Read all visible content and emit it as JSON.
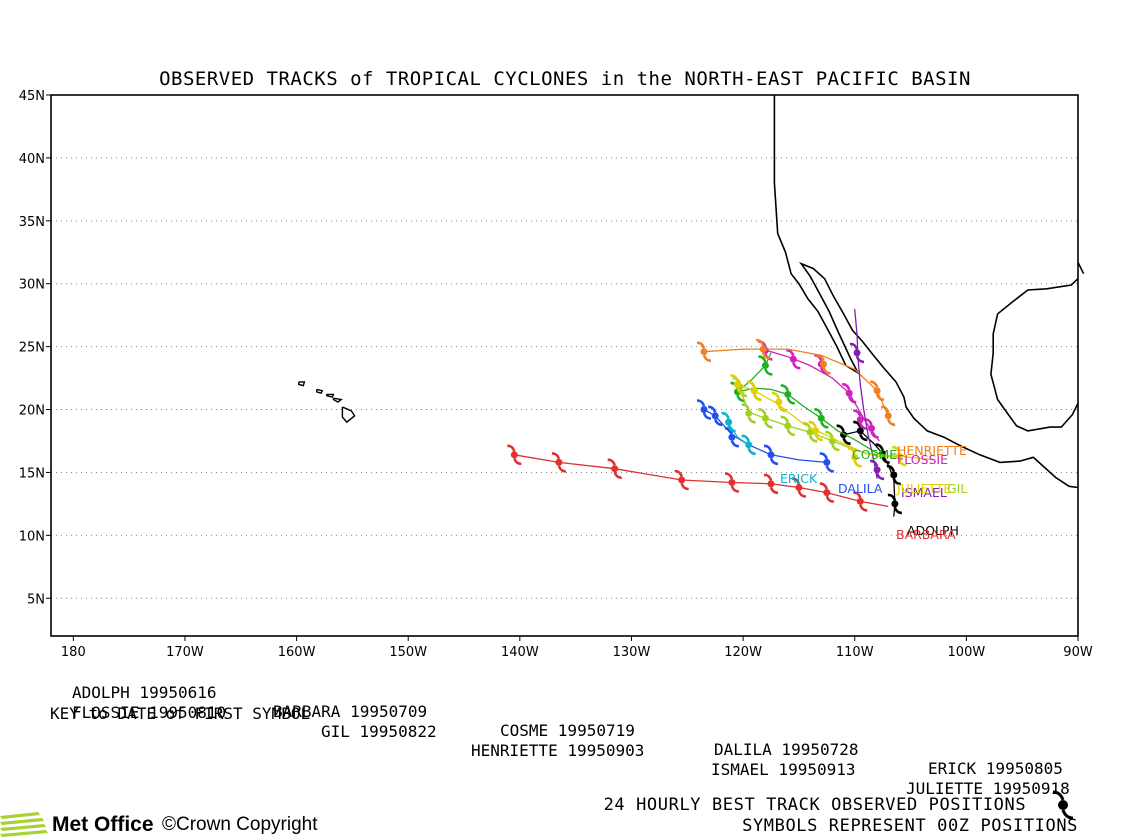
{
  "title": "OBSERVED TRACKS of TROPICAL CYCLONES in the NORTH-EAST PACIFIC BASIN",
  "lat_labels": [
    "45N",
    "40N",
    "35N",
    "30N",
    "25N",
    "20N",
    "15N",
    "10N",
    "5N"
  ],
  "lon_labels": [
    "180",
    "170W",
    "160W",
    "150W",
    "140W",
    "130W",
    "120W",
    "110W",
    "100W",
    "90W"
  ],
  "key_rows": [
    [
      "ADOLPH 19950616",
      "BARBARA 19950709",
      "COSME 19950719",
      "DALILA 19950728",
      "ERICK 19950805"
    ],
    [
      "FLOSSIE 19950810",
      "GIL 19950822",
      "HENRIETTE 19950903",
      "ISMAEL 19950913",
      "JULIETTE 19950918"
    ]
  ],
  "key_note": "KEY to DATE of FIRST SYMBOL",
  "footer": {
    "line1": "24 HOURLY BEST TRACK OBSERVED POSITIONS",
    "line2": "SYMBOLS REPRESENT 00Z POSITIONS"
  },
  "logo_text": "Met Office",
  "copyright": "©Crown Copyright",
  "storms": [
    {
      "name": "ADOLPH",
      "color": "#000000",
      "label": "ADOLPH",
      "track": [
        [
          -111.0,
          18.0
        ],
        [
          -109.5,
          18.3
        ],
        [
          -108.3,
          17.3
        ],
        [
          -107.5,
          16.5
        ],
        [
          -107.0,
          15.6
        ],
        [
          -106.5,
          14.5
        ],
        [
          -106.4,
          12.5
        ],
        [
          -106.5,
          11.5
        ]
      ],
      "symbols": [
        [
          -111.0,
          18.0
        ],
        [
          -109.5,
          18.3
        ],
        [
          -107.5,
          16.5
        ],
        [
          -106.5,
          14.8
        ],
        [
          -106.4,
          12.5
        ]
      ]
    },
    {
      "name": "BARBARA",
      "color": "#e03030",
      "label": "BARBARA",
      "track": [
        [
          -107.0,
          12.3
        ],
        [
          -109.5,
          12.7
        ],
        [
          -112.5,
          13.4
        ],
        [
          -115.0,
          13.8
        ],
        [
          -117.5,
          14.1
        ],
        [
          -121.0,
          14.2
        ],
        [
          -125.5,
          14.4
        ],
        [
          -131.5,
          15.3
        ],
        [
          -136.5,
          15.8
        ],
        [
          -140.5,
          16.4
        ]
      ],
      "symbols": [
        [
          -109.5,
          12.7
        ],
        [
          -112.5,
          13.4
        ],
        [
          -115.0,
          13.8
        ],
        [
          -117.5,
          14.1
        ],
        [
          -121.0,
          14.2
        ],
        [
          -125.5,
          14.4
        ],
        [
          -131.5,
          15.3
        ],
        [
          -136.5,
          15.8
        ],
        [
          -140.5,
          16.4
        ]
      ]
    },
    {
      "name": "COSME",
      "color": "#20b020",
      "label": "COSME",
      "track": [
        [
          -107.5,
          16.3
        ],
        [
          -108.5,
          16.8
        ],
        [
          -110.0,
          17.6
        ],
        [
          -111.5,
          18.3
        ],
        [
          -113.0,
          19.3
        ],
        [
          -114.5,
          20.2
        ],
        [
          -116.0,
          21.2
        ],
        [
          -117.5,
          21.6
        ],
        [
          -119.0,
          21.7
        ],
        [
          -120.5,
          21.4
        ],
        [
          -119.2,
          22.4
        ],
        [
          -118.0,
          23.5
        ],
        [
          -117.5,
          24.5
        ]
      ],
      "symbols": [
        [
          -113.0,
          19.3
        ],
        [
          -116.0,
          21.2
        ],
        [
          -119.0,
          21.5
        ],
        [
          -120.5,
          21.4
        ],
        [
          -118.0,
          23.5
        ]
      ]
    },
    {
      "name": "DALILA",
      "color": "#2050f0",
      "label": "DALILA",
      "track": [
        [
          -112.5,
          15.8
        ],
        [
          -115.0,
          16.0
        ],
        [
          -117.5,
          16.4
        ],
        [
          -119.5,
          17.2
        ],
        [
          -121.0,
          18.0
        ],
        [
          -122.5,
          19.5
        ],
        [
          -123.5,
          20.0
        ]
      ],
      "symbols": [
        [
          -112.5,
          15.8
        ],
        [
          -117.5,
          16.4
        ],
        [
          -121.0,
          17.8
        ],
        [
          -122.5,
          19.5
        ],
        [
          -123.5,
          20.0
        ]
      ]
    },
    {
      "name": "ERICK",
      "color": "#10b0d0",
      "label": "ERICK",
      "track": [
        [
          -119.5,
          17.2
        ],
        [
          -120.5,
          17.8
        ],
        [
          -121.0,
          18.5
        ],
        [
          -121.5,
          19.0
        ]
      ],
      "symbols": [
        [
          -119.5,
          17.2
        ],
        [
          -121.3,
          19.0
        ]
      ]
    },
    {
      "name": "FLOSSIE",
      "color": "#d020c0",
      "label": "FLOSSIE",
      "track": [
        [
          -107.8,
          17.5
        ],
        [
          -109.0,
          19.0
        ],
        [
          -110.5,
          21.3
        ],
        [
          -112.0,
          22.5
        ],
        [
          -114.0,
          23.5
        ],
        [
          -116.0,
          24.2
        ],
        [
          -117.5,
          24.6
        ],
        [
          -118.0,
          24.7
        ]
      ],
      "symbols": [
        [
          -108.5,
          18.5
        ],
        [
          -109.5,
          19.2
        ],
        [
          -110.5,
          21.3
        ],
        [
          -113.0,
          23.6
        ],
        [
          -115.5,
          24.0
        ],
        [
          -118.0,
          24.7
        ]
      ]
    },
    {
      "name": "GIL",
      "color": "#a0d020",
      "label": "GIL",
      "track": [
        [
          -106.0,
          16.2
        ],
        [
          -108.0,
          16.3
        ],
        [
          -110.0,
          16.8
        ],
        [
          -112.0,
          17.5
        ],
        [
          -114.0,
          18.2
        ],
        [
          -116.0,
          18.7
        ],
        [
          -118.0,
          19.3
        ],
        [
          -119.5,
          19.8
        ],
        [
          -120.0,
          21.0
        ],
        [
          -120.5,
          22.0
        ]
      ],
      "symbols": [
        [
          -112.0,
          17.5
        ],
        [
          -114.0,
          18.2
        ],
        [
          -116.0,
          18.7
        ],
        [
          -118.0,
          19.3
        ],
        [
          -119.5,
          19.7
        ],
        [
          -120.3,
          21.8
        ]
      ]
    },
    {
      "name": "HENRIETTE",
      "color": "#f08020",
      "label": "HENRIETTE",
      "track": [
        [
          -107.0,
          19.5
        ],
        [
          -108.0,
          21.5
        ],
        [
          -110.0,
          23.2
        ],
        [
          -113.0,
          24.3
        ],
        [
          -116.0,
          24.8
        ],
        [
          -120.0,
          24.8
        ],
        [
          -123.5,
          24.6
        ]
      ],
      "symbols": [
        [
          -107.0,
          19.5
        ],
        [
          -108.0,
          21.5
        ],
        [
          -112.8,
          23.6
        ],
        [
          -118.2,
          24.8
        ],
        [
          -123.5,
          24.6
        ]
      ]
    },
    {
      "name": "ISMAEL",
      "color": "#8020b0",
      "label": "ISMAEL",
      "track": [
        [
          -108.0,
          14.5
        ],
        [
          -108.3,
          16.0
        ],
        [
          -108.8,
          18.0
        ],
        [
          -109.2,
          20.0
        ],
        [
          -109.5,
          22.0
        ],
        [
          -109.7,
          24.0
        ],
        [
          -109.8,
          26.0
        ],
        [
          -110.0,
          28.0
        ]
      ],
      "symbols": [
        [
          -108.0,
          15.2
        ],
        [
          -109.8,
          24.5
        ]
      ]
    },
    {
      "name": "JULIETTE",
      "color": "#e0d000",
      "label": "JULIETTE",
      "track": [
        [
          -103.0,
          16.0
        ],
        [
          -106.0,
          16.3
        ],
        [
          -109.0,
          16.5
        ],
        [
          -111.5,
          17.5
        ],
        [
          -114.5,
          18.8
        ],
        [
          -117.0,
          20.5
        ],
        [
          -119.0,
          21.5
        ],
        [
          -120.5,
          22.0
        ]
      ],
      "symbols": [
        [
          -106.0,
          16.3
        ],
        [
          -110.0,
          16.2
        ],
        [
          -113.5,
          18.3
        ],
        [
          -116.8,
          20.6
        ],
        [
          -119.0,
          21.5
        ],
        [
          -120.5,
          22.0
        ]
      ]
    }
  ]
}
